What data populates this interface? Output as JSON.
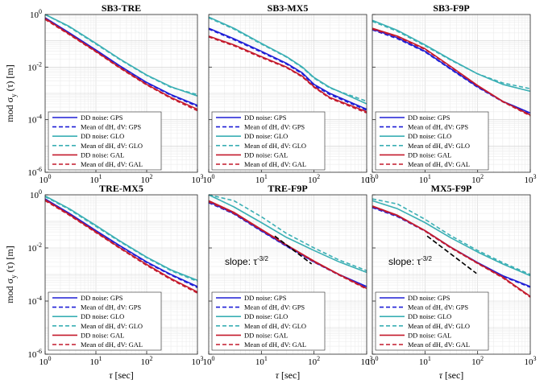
{
  "figure": {
    "ylabel_main": "mod σ",
    "ylabel_sub": "y",
    "ylabel_tail": "(τ) [m]",
    "xlabel_main": "τ",
    "xlabel_tail": "[sec]"
  },
  "chart_data": [
    {
      "type": "line",
      "title": "SB3-TRE",
      "xscale": "log",
      "yscale": "log",
      "xlim": [
        1,
        1000
      ],
      "ylim": [
        1e-06,
        1
      ],
      "xticks": [
        1,
        10,
        100,
        1000
      ],
      "xtick_labels": [
        "10^0",
        "10^1",
        "10^2",
        "10^3"
      ],
      "yticks": [
        1,
        0.01,
        0.0001,
        1e-06
      ],
      "ytick_labels": [
        "10^0",
        "10^-2",
        "10^-4",
        "10^-6"
      ],
      "grid": true,
      "legend_position": "bottom-left",
      "series": [
        {
          "name": "DD noise: GPS",
          "color": "#1f1fd6",
          "style": "solid",
          "x": [
            1,
            3,
            10,
            30,
            100,
            300,
            1000
          ],
          "y": [
            0.75,
            0.2,
            0.045,
            0.011,
            0.0026,
            0.0009,
            0.00035
          ]
        },
        {
          "name": "Mean of dH, dV: GPS",
          "color": "#1f1fd6",
          "style": "dashed",
          "x": [
            1,
            3,
            10,
            30,
            100,
            300,
            1000
          ],
          "y": [
            0.7,
            0.19,
            0.043,
            0.0105,
            0.0025,
            0.00085,
            0.00032
          ]
        },
        {
          "name": "DD noise: GLO",
          "color": "#3aafb4",
          "style": "solid",
          "x": [
            1,
            3,
            10,
            30,
            100,
            300,
            1000
          ],
          "y": [
            1.0,
            0.35,
            0.08,
            0.02,
            0.005,
            0.0018,
            0.0008
          ]
        },
        {
          "name": "Mean of dH, dV: GLO",
          "color": "#3aafb4",
          "style": "dashed",
          "x": [
            1,
            3,
            10,
            30,
            100,
            300,
            1000
          ],
          "y": [
            1.0,
            0.33,
            0.075,
            0.019,
            0.0048,
            0.0017,
            0.0009
          ]
        },
        {
          "name": "DD noise: GAL",
          "color": "#c41a2c",
          "style": "solid",
          "x": [
            1,
            3,
            10,
            30,
            100,
            300,
            1000
          ],
          "y": [
            0.7,
            0.18,
            0.04,
            0.0095,
            0.0022,
            0.0007,
            0.00025
          ]
        },
        {
          "name": "Mean of dH, dV: GAL",
          "color": "#c41a2c",
          "style": "dashed",
          "x": [
            1,
            3,
            10,
            30,
            100,
            300,
            1000
          ],
          "y": [
            0.65,
            0.17,
            0.038,
            0.009,
            0.0021,
            0.00065,
            0.00022
          ]
        }
      ]
    },
    {
      "type": "line",
      "title": "SB3-MX5",
      "xscale": "log",
      "yscale": "log",
      "xlim": [
        1,
        1000
      ],
      "ylim": [
        1e-06,
        1
      ],
      "xticks": [
        1,
        10,
        100,
        1000
      ],
      "xtick_labels": [
        "10^0",
        "10^1",
        "10^2",
        "10^3"
      ],
      "yticks": [
        1,
        0.01,
        0.0001,
        1e-06
      ],
      "ytick_labels": [
        "10^0",
        "10^-2",
        "10^-4",
        "10^-6"
      ],
      "grid": true,
      "legend_position": "bottom-left",
      "series": [
        {
          "name": "DD noise: GPS",
          "color": "#1f1fd6",
          "style": "solid",
          "x": [
            1,
            3,
            10,
            30,
            60,
            100,
            200,
            1000
          ],
          "y": [
            0.3,
            0.12,
            0.04,
            0.014,
            0.006,
            0.0022,
            0.001,
            0.00025
          ]
        },
        {
          "name": "Mean of dH, dV: GPS",
          "color": "#1f1fd6",
          "style": "dashed",
          "x": [
            1,
            3,
            10,
            30,
            60,
            100,
            200,
            1000
          ],
          "y": [
            0.28,
            0.11,
            0.037,
            0.013,
            0.0055,
            0.002,
            0.0009,
            0.00023
          ]
        },
        {
          "name": "DD noise: GLO",
          "color": "#3aafb4",
          "style": "solid",
          "x": [
            1,
            3,
            10,
            30,
            60,
            100,
            200,
            1000
          ],
          "y": [
            0.8,
            0.3,
            0.08,
            0.025,
            0.01,
            0.004,
            0.0017,
            0.0004
          ]
        },
        {
          "name": "Mean of dH, dV: GLO",
          "color": "#3aafb4",
          "style": "dashed",
          "x": [
            1,
            3,
            10,
            30,
            60,
            100,
            200,
            1000
          ],
          "y": [
            0.75,
            0.28,
            0.075,
            0.024,
            0.0095,
            0.0038,
            0.0016,
            0.0005
          ]
        },
        {
          "name": "DD noise: GAL",
          "color": "#c41a2c",
          "style": "solid",
          "x": [
            1,
            3,
            10,
            30,
            60,
            100,
            200,
            1000
          ],
          "y": [
            0.15,
            0.07,
            0.025,
            0.01,
            0.0045,
            0.0018,
            0.0007,
            0.0002
          ]
        },
        {
          "name": "Mean of dH, dV: GAL",
          "color": "#c41a2c",
          "style": "dashed",
          "x": [
            1,
            3,
            10,
            30,
            60,
            100,
            200,
            1000
          ],
          "y": [
            0.14,
            0.065,
            0.023,
            0.0095,
            0.0042,
            0.0017,
            0.00065,
            0.00018
          ]
        }
      ]
    },
    {
      "type": "line",
      "title": "SB3-F9P",
      "xscale": "log",
      "yscale": "log",
      "xlim": [
        1,
        1000
      ],
      "ylim": [
        1e-06,
        1
      ],
      "xticks": [
        1,
        10,
        100,
        1000
      ],
      "xtick_labels": [
        "10^0",
        "10^1",
        "10^2",
        "10^3"
      ],
      "yticks": [
        1,
        0.01,
        0.0001,
        1e-06
      ],
      "ytick_labels": [
        "10^0",
        "10^-2",
        "10^-4",
        "10^-6"
      ],
      "grid": true,
      "legend_position": "bottom-left",
      "series": [
        {
          "name": "DD noise: GPS",
          "color": "#1f1fd6",
          "style": "solid",
          "x": [
            1,
            3,
            10,
            30,
            100,
            300,
            1000
          ],
          "y": [
            0.28,
            0.13,
            0.04,
            0.009,
            0.0018,
            0.0005,
            0.00018
          ]
        },
        {
          "name": "Mean of dH, dV: GPS",
          "color": "#1f1fd6",
          "style": "dashed",
          "x": [
            1,
            3,
            10,
            30,
            100,
            300,
            1000
          ],
          "y": [
            0.26,
            0.12,
            0.038,
            0.0085,
            0.0017,
            0.00048,
            0.00017
          ]
        },
        {
          "name": "DD noise: GLO",
          "color": "#3aafb4",
          "style": "solid",
          "x": [
            1,
            3,
            10,
            30,
            100,
            300,
            1000
          ],
          "y": [
            0.6,
            0.25,
            0.07,
            0.02,
            0.0055,
            0.0022,
            0.0012
          ]
        },
        {
          "name": "Mean of dH, dV: GLO",
          "color": "#3aafb4",
          "style": "dashed",
          "x": [
            1,
            3,
            10,
            30,
            100,
            300,
            1000
          ],
          "y": [
            0.55,
            0.23,
            0.065,
            0.019,
            0.0055,
            0.0025,
            0.0015
          ]
        },
        {
          "name": "DD noise: GAL",
          "color": "#c41a2c",
          "style": "solid",
          "x": [
            1,
            3,
            10,
            30,
            100,
            300,
            1000
          ],
          "y": [
            0.3,
            0.15,
            0.05,
            0.011,
            0.002,
            0.0005,
            0.00015
          ]
        },
        {
          "name": "Mean of dH, dV: GAL",
          "color": "#c41a2c",
          "style": "dashed",
          "x": [
            1,
            3,
            10,
            30,
            100,
            300,
            1000
          ],
          "y": [
            0.28,
            0.14,
            0.047,
            0.0105,
            0.0019,
            0.00048,
            0.00014
          ]
        }
      ]
    },
    {
      "type": "line",
      "title": "TRE-MX5",
      "xscale": "log",
      "yscale": "log",
      "xlim": [
        1,
        1000
      ],
      "ylim": [
        1e-06,
        1
      ],
      "xticks": [
        1,
        10,
        100,
        1000
      ],
      "xtick_labels": [
        "10^0",
        "10^1",
        "10^2",
        "10^3"
      ],
      "yticks": [
        1,
        0.01,
        0.0001,
        1e-06
      ],
      "ytick_labels": [
        "10^0",
        "10^-2",
        "10^-4",
        "10^-6"
      ],
      "grid": true,
      "legend_position": "bottom-left",
      "series": [
        {
          "name": "DD noise: GPS",
          "color": "#1f1fd6",
          "style": "solid",
          "x": [
            1,
            3,
            10,
            30,
            100,
            300,
            1000
          ],
          "y": [
            0.7,
            0.2,
            0.045,
            0.012,
            0.003,
            0.001,
            0.00035
          ]
        },
        {
          "name": "Mean of dH, dV: GPS",
          "color": "#1f1fd6",
          "style": "dashed",
          "x": [
            1,
            3,
            10,
            30,
            100,
            300,
            1000
          ],
          "y": [
            0.65,
            0.19,
            0.043,
            0.0115,
            0.0028,
            0.00095,
            0.00032
          ]
        },
        {
          "name": "DD noise: GLO",
          "color": "#3aafb4",
          "style": "solid",
          "x": [
            1,
            3,
            10,
            30,
            100,
            300,
            1000
          ],
          "y": [
            0.9,
            0.3,
            0.07,
            0.018,
            0.0045,
            0.0015,
            0.0006
          ]
        },
        {
          "name": "Mean of dH, dV: GLO",
          "color": "#3aafb4",
          "style": "dashed",
          "x": [
            1,
            3,
            10,
            30,
            100,
            300,
            1000
          ],
          "y": [
            0.85,
            0.28,
            0.065,
            0.017,
            0.0043,
            0.0014,
            0.00055
          ]
        },
        {
          "name": "DD noise: GAL",
          "color": "#c41a2c",
          "style": "solid",
          "x": [
            1,
            3,
            10,
            30,
            100,
            300,
            1000
          ],
          "y": [
            0.65,
            0.18,
            0.04,
            0.01,
            0.0024,
            0.0007,
            0.00022
          ]
        },
        {
          "name": "Mean of dH, dV: GAL",
          "color": "#c41a2c",
          "style": "dashed",
          "x": [
            1,
            3,
            10,
            30,
            100,
            300,
            1000
          ],
          "y": [
            0.6,
            0.17,
            0.038,
            0.0095,
            0.0022,
            0.00065,
            0.0002
          ]
        }
      ]
    },
    {
      "type": "line",
      "title": "TRE-F9P",
      "xscale": "log",
      "yscale": "log",
      "xlim": [
        1,
        1000
      ],
      "ylim": [
        1e-06,
        1
      ],
      "xticks": [
        1,
        10,
        100,
        1000
      ],
      "xtick_labels": [
        "10^0",
        "10^1",
        "10^2",
        "10^3"
      ],
      "yticks": [
        1,
        0.01,
        0.0001,
        1e-06
      ],
      "ytick_labels": [
        "10^0",
        "10^-2",
        "10^-4",
        "10^-6"
      ],
      "grid": true,
      "legend_position": "bottom-left",
      "annotation": {
        "text": "slope: τ",
        "superscript": "-3/2"
      },
      "reference_line": {
        "x": [
          18,
          90
        ],
        "y": [
          0.028,
          0.0025
        ]
      },
      "series": [
        {
          "name": "DD noise: GPS",
          "color": "#1f1fd6",
          "style": "solid",
          "x": [
            1,
            3,
            10,
            30,
            100,
            300,
            1000
          ],
          "y": [
            0.55,
            0.2,
            0.045,
            0.012,
            0.003,
            0.001,
            0.00035
          ]
        },
        {
          "name": "Mean of dH, dV: GPS",
          "color": "#1f1fd6",
          "style": "dashed",
          "x": [
            1,
            3,
            10,
            30,
            100,
            300,
            1000
          ],
          "y": [
            0.5,
            0.19,
            0.043,
            0.0115,
            0.0029,
            0.00095,
            0.00033
          ]
        },
        {
          "name": "DD noise: GLO",
          "color": "#3aafb4",
          "style": "solid",
          "x": [
            1,
            3,
            10,
            30,
            100,
            300,
            1000
          ],
          "y": [
            1.0,
            0.35,
            0.09,
            0.025,
            0.008,
            0.003,
            0.0012
          ]
        },
        {
          "name": "Mean of dH, dV: GLO",
          "color": "#3aafb4",
          "style": "dashed",
          "x": [
            1,
            3,
            10,
            30,
            100,
            300,
            1000
          ],
          "y": [
            1.0,
            0.6,
            0.15,
            0.035,
            0.01,
            0.0035,
            0.0014
          ]
        },
        {
          "name": "DD noise: GAL",
          "color": "#c41a2c",
          "style": "solid",
          "x": [
            1,
            3,
            10,
            30,
            100,
            300,
            1000
          ],
          "y": [
            0.6,
            0.22,
            0.05,
            0.013,
            0.0032,
            0.001,
            0.0003
          ]
        },
        {
          "name": "Mean of dH, dV: GAL",
          "color": "#c41a2c",
          "style": "dashed",
          "x": [
            1,
            3,
            10,
            30,
            100,
            300,
            1000
          ],
          "y": [
            0.55,
            0.2,
            0.047,
            0.0125,
            0.003,
            0.00095,
            0.00028
          ]
        }
      ]
    },
    {
      "type": "line",
      "title": "MX5-F9P",
      "xscale": "log",
      "yscale": "log",
      "xlim": [
        1,
        1000
      ],
      "ylim": [
        1e-06,
        1
      ],
      "xticks": [
        1,
        10,
        100,
        1000
      ],
      "xtick_labels": [
        "10^0",
        "10^1",
        "10^2",
        "10^3"
      ],
      "yticks": [
        1,
        0.01,
        0.0001,
        1e-06
      ],
      "ytick_labels": [
        "10^0",
        "10^-2",
        "10^-4",
        "10^-6"
      ],
      "grid": true,
      "legend_position": "bottom-left",
      "annotation": {
        "text": "slope: τ",
        "superscript": "-3/2"
      },
      "reference_line": {
        "x": [
          11,
          95
        ],
        "y": [
          0.028,
          0.0011
        ]
      },
      "series": [
        {
          "name": "DD noise: GPS",
          "color": "#1f1fd6",
          "style": "solid",
          "x": [
            1,
            3,
            10,
            30,
            100,
            300,
            1000
          ],
          "y": [
            0.35,
            0.16,
            0.045,
            0.011,
            0.0028,
            0.0009,
            0.00035
          ]
        },
        {
          "name": "Mean of dH, dV: GPS",
          "color": "#1f1fd6",
          "style": "dashed",
          "x": [
            1,
            3,
            10,
            30,
            100,
            300,
            1000
          ],
          "y": [
            0.33,
            0.15,
            0.043,
            0.0105,
            0.0027,
            0.00085,
            0.00033
          ]
        },
        {
          "name": "DD noise: GLO",
          "color": "#3aafb4",
          "style": "solid",
          "x": [
            1,
            3,
            10,
            30,
            100,
            300,
            1000
          ],
          "y": [
            0.6,
            0.3,
            0.09,
            0.025,
            0.007,
            0.0025,
            0.0009
          ]
        },
        {
          "name": "Mean of dH, dV: GLO",
          "color": "#3aafb4",
          "style": "dashed",
          "x": [
            1,
            3,
            10,
            30,
            100,
            300,
            1000
          ],
          "y": [
            0.7,
            0.45,
            0.12,
            0.03,
            0.008,
            0.0028,
            0.001
          ]
        },
        {
          "name": "DD noise: GAL",
          "color": "#c41a2c",
          "style": "solid",
          "x": [
            1,
            3,
            10,
            30,
            100,
            300,
            1000
          ],
          "y": [
            0.38,
            0.17,
            0.045,
            0.011,
            0.0027,
            0.0008,
            0.00015
          ]
        },
        {
          "name": "Mean of dH, dV: GAL",
          "color": "#c41a2c",
          "style": "dashed",
          "x": [
            1,
            3,
            10,
            30,
            100,
            300,
            1000
          ],
          "y": [
            0.36,
            0.16,
            0.043,
            0.0105,
            0.0026,
            0.00075,
            0.00014
          ]
        }
      ]
    }
  ]
}
